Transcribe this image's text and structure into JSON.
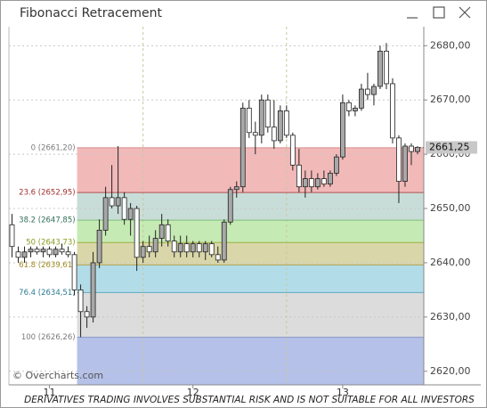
{
  "window_title": "Fibonacci Retracement",
  "chart_data": {
    "type": "candlestick",
    "up_color": "#a8a8a8",
    "down_color": "#ffffff",
    "xlim": [
      -0.5,
      66
    ],
    "ylim": [
      2617.5,
      2683.5
    ],
    "xticks": [
      {
        "value": 6,
        "label": "11"
      },
      {
        "value": 29,
        "label": "12"
      },
      {
        "value": 53,
        "label": "13"
      }
    ],
    "session_lines": [
      21,
      44
    ],
    "yticks": [
      {
        "value": 2620,
        "label": "2620,00"
      },
      {
        "value": 2630,
        "label": "2630,00"
      },
      {
        "value": 2640,
        "label": "2640,00"
      },
      {
        "value": 2650,
        "label": "2650,00"
      },
      {
        "value": 2660,
        "label": "2660,00"
      },
      {
        "value": 2670,
        "label": "2670,00"
      },
      {
        "value": 2680,
        "label": "2680,00"
      }
    ],
    "grid": true,
    "last_price": {
      "value": 2661.25,
      "label": "2661,25"
    },
    "fib_anchor": 11,
    "fib_levels": [
      {
        "value": 2661.2,
        "label": "0 (2661,20)",
        "color": "#7a7a7a",
        "line": "#d88c8c",
        "fill": "#f2b9b9"
      },
      {
        "value": 2652.95,
        "label": "23.6 (2652,95)",
        "color": "#a03030",
        "line": "#b05050",
        "fill": "#c9ddd8"
      },
      {
        "value": 2647.85,
        "label": "38.2 (2647,85)",
        "color": "#2f6e55",
        "line": "#7cc07c",
        "fill": "#c6eab4"
      },
      {
        "value": 2643.73,
        "label": "50 (2643,73)",
        "color": "#8a9a20",
        "line": "#9ab040",
        "fill": "#d9d7a9"
      },
      {
        "value": 2639.61,
        "label": "61.8 (2639,61)",
        "color": "#a08a20",
        "line": "#b0a050",
        "fill": "#b2dde8"
      },
      {
        "value": 2634.51,
        "label": "76.4 (2634,51)",
        "color": "#2a7a90",
        "line": "#60a8c0",
        "fill": "#dcdcdc"
      },
      {
        "value": 2626.26,
        "label": "100 (2626,26)",
        "color": "#7a7a7a",
        "line": "#8894c8",
        "fill": "#b5c1e8"
      }
    ],
    "open": [
      2647,
      2642,
      2641,
      2642,
      2642.5,
      2642,
      2642.5,
      2641.5,
      2642.5,
      2642,
      2641.5,
      2635,
      2631,
      2630,
      2640,
      2646,
      2652,
      2650.5,
      2652,
      2648,
      2650,
      2641,
      2643,
      2642,
      2644.5,
      2647,
      2644,
      2642,
      2643.5,
      2642,
      2643.5,
      2642,
      2643.5,
      2641.5,
      2640.5,
      2647.5,
      2653.5,
      2654,
      2668.5,
      2664,
      2663.5,
      2670,
      2665,
      2662.5,
      2668,
      2663.5,
      2658,
      2654,
      2655.5,
      2654,
      2655.5,
      2654.5,
      2656.5,
      2659.5,
      2669.5,
      2668,
      2668.5,
      2672,
      2671,
      2672.5,
      2679,
      2673,
      2663,
      2655,
      2661.5,
      2660.5
    ],
    "high": [
      2649,
      2643,
      2643,
      2643,
      2643,
      2643,
      2643,
      2643,
      2643.5,
      2643,
      2642,
      2636,
      2632,
      2642,
      2648,
      2654,
      2658,
      2661.5,
      2653,
      2651,
      2650.5,
      2644,
      2645,
      2646,
      2649,
      2648,
      2645,
      2645,
      2645,
      2644,
      2644,
      2644,
      2644,
      2643,
      2648,
      2654,
      2655,
      2669.5,
      2670,
      2666,
      2671,
      2671,
      2670,
      2669,
      2669,
      2664,
      2661,
      2657,
      2657,
      2656.5,
      2657,
      2657,
      2660,
      2671,
      2670,
      2669,
      2673,
      2675,
      2673,
      2680,
      2680.5,
      2674,
      2663.5,
      2662,
      2662,
      2661.5
    ],
    "low": [
      2641,
      2640,
      2640,
      2641,
      2641.5,
      2641,
      2641,
      2641,
      2641.5,
      2641,
      2634,
      2626.3,
      2628,
      2629,
      2639,
      2645,
      2650,
      2649,
      2647,
      2645,
      2638.5,
      2640,
      2641,
      2641,
      2643,
      2643,
      2641,
      2641,
      2641,
      2641,
      2641,
      2640.5,
      2641,
      2640,
      2640,
      2647,
      2652,
      2653,
      2663,
      2660,
      2662,
      2664,
      2661,
      2662,
      2663,
      2657,
      2653,
      2652,
      2653,
      2653.5,
      2654,
      2654,
      2656,
      2659,
      2667,
      2667,
      2668,
      2670,
      2669,
      2672,
      2672,
      2662,
      2651,
      2654,
      2658,
      2660
    ],
    "close": [
      2643,
      2641,
      2642,
      2642.5,
      2642,
      2642.5,
      2641.5,
      2642.5,
      2642,
      2641.5,
      2635,
      2631,
      2630,
      2640,
      2646,
      2652,
      2650.5,
      2652,
      2648,
      2650,
      2641,
      2643,
      2642,
      2644.5,
      2647,
      2644,
      2642,
      2643.5,
      2642,
      2643.5,
      2642,
      2643.5,
      2641.5,
      2640.5,
      2647.5,
      2653.5,
      2654,
      2668.5,
      2664,
      2663.5,
      2670,
      2665,
      2662.5,
      2668,
      2663.5,
      2658,
      2654,
      2655.5,
      2654,
      2655.5,
      2654.5,
      2656.5,
      2659.5,
      2669.5,
      2668,
      2668.5,
      2672,
      2671,
      2672.5,
      2679,
      2673,
      2663,
      2655,
      2661.5,
      2660.5,
      2661.25
    ]
  },
  "copyright": "© Overcharts.com",
  "disclaimer": "DERIVATIVES TRADING INVOLVES SUBSTANTIAL RISK AND IS NOT SUITABLE FOR ALL INVESTORS"
}
